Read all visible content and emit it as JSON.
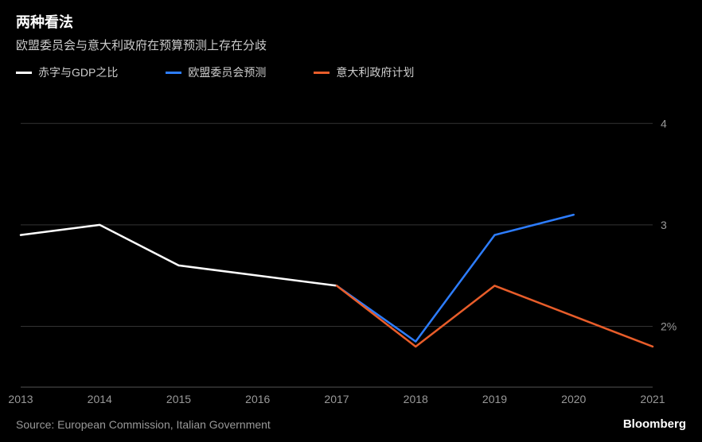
{
  "title": "两种看法",
  "subtitle": "欧盟委员会与意大利政府在预算预测上存在分歧",
  "legend": [
    {
      "label": "赤字与GDP之比",
      "color": "#ffffff"
    },
    {
      "label": "欧盟委员会预测",
      "color": "#2d7dff"
    },
    {
      "label": "意大利政府计划",
      "color": "#e85d2a"
    }
  ],
  "chart": {
    "type": "line",
    "background_color": "#000000",
    "grid_color": "#333333",
    "axis_color": "#555555",
    "label_color": "#999999",
    "label_fontsize": 14,
    "x": {
      "min": 2013,
      "max": 2021,
      "ticks": [
        2013,
        2014,
        2015,
        2016,
        2017,
        2018,
        2019,
        2020,
        2021
      ]
    },
    "y": {
      "min": 1.4,
      "max": 4.3,
      "ticks": [
        2,
        3,
        4
      ],
      "unit_suffix_on_first": "%"
    },
    "series": [
      {
        "name": "deficit-gdp-ratio",
        "color": "#ffffff",
        "stroke_width": 2.5,
        "points": [
          {
            "x": 2013,
            "y": 2.9
          },
          {
            "x": 2014,
            "y": 3.0
          },
          {
            "x": 2015,
            "y": 2.6
          },
          {
            "x": 2016,
            "y": 2.5
          },
          {
            "x": 2017,
            "y": 2.4
          }
        ]
      },
      {
        "name": "european-commission-forecast",
        "color": "#2d7dff",
        "stroke_width": 2.5,
        "points": [
          {
            "x": 2017,
            "y": 2.4
          },
          {
            "x": 2018,
            "y": 1.85
          },
          {
            "x": 2019,
            "y": 2.9
          },
          {
            "x": 2020,
            "y": 3.1
          }
        ]
      },
      {
        "name": "italian-government-plan",
        "color": "#e85d2a",
        "stroke_width": 2.5,
        "points": [
          {
            "x": 2017,
            "y": 2.4
          },
          {
            "x": 2018,
            "y": 1.8
          },
          {
            "x": 2019,
            "y": 2.4
          },
          {
            "x": 2020,
            "y": 2.1
          },
          {
            "x": 2021,
            "y": 1.8
          }
        ]
      }
    ]
  },
  "source": "Source: European Commission, Italian Government",
  "brand": "Bloomberg"
}
